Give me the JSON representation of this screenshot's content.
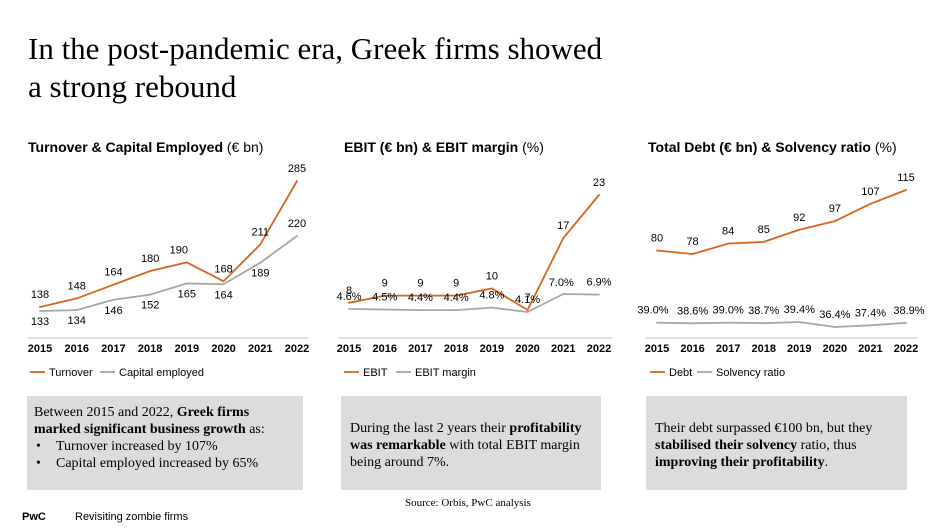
{
  "title_line1": "In the post-pandemic era, Greek firms showed",
  "title_line2": "a strong rebound",
  "colors": {
    "orange": "#D9641E",
    "grey": "#A6A6A6",
    "note_bg": "#DCDCDC"
  },
  "chart_data": [
    {
      "type": "line",
      "title_bold": "Turnover & Capital Employed",
      "title_unit": " (€ bn)",
      "x": [
        "2015",
        "2016",
        "2017",
        "2018",
        "2019",
        "2020",
        "2021",
        "2022"
      ],
      "series": [
        {
          "name": "Turnover",
          "color": "#D9641E",
          "values": [
            138,
            148,
            164,
            180,
            190,
            168,
            211,
            285
          ],
          "labels": [
            "138",
            "148",
            "164",
            "180",
            "190",
            "168",
            "211",
            "285"
          ]
        },
        {
          "name": "Capital employed",
          "color": "#A6A6A6",
          "values": [
            133,
            134,
            146,
            152,
            165,
            164,
            189,
            220
          ],
          "labels": [
            "133",
            "134",
            "146",
            "152",
            "165",
            "164",
            "189",
            "220"
          ]
        }
      ]
    },
    {
      "type": "line",
      "title_bold": "EBIT (€ bn) & EBIT margin",
      "title_unit": " (%)",
      "x": [
        "2015",
        "2016",
        "2017",
        "2018",
        "2019",
        "2020",
        "2021",
        "2022"
      ],
      "series": [
        {
          "name": "EBIT",
          "color": "#D9641E",
          "values": [
            8,
            9,
            9,
            9,
            10,
            7,
            17,
            23
          ],
          "labels": [
            "8",
            "9",
            "9",
            "9",
            "10",
            "7",
            "17",
            "23"
          ]
        },
        {
          "name": "EBIT margin",
          "color": "#A6A6A6",
          "values": [
            4.6,
            4.5,
            4.4,
            4.4,
            4.8,
            4.1,
            7.0,
            6.9
          ],
          "labels": [
            "4.6%",
            "4.5%",
            "4.4%",
            "4.4%",
            "4.8%",
            "4.1%",
            "7.0%",
            "6.9%"
          ]
        }
      ]
    },
    {
      "type": "line",
      "title_bold": "Total Debt (€ bn) & Solvency ratio",
      "title_unit": " (%)",
      "x": [
        "2015",
        "2016",
        "2017",
        "2018",
        "2019",
        "2020",
        "2021",
        "2022"
      ],
      "series": [
        {
          "name": "Debt",
          "color": "#D9641E",
          "values": [
            80,
            78,
            84,
            85,
            92,
            97,
            107,
            115
          ],
          "labels": [
            "80",
            "78",
            "84",
            "85",
            "92",
            "97",
            "107",
            "115"
          ]
        },
        {
          "name": "Solvency ratio",
          "color": "#A6A6A6",
          "values": [
            39.0,
            38.6,
            39.0,
            38.7,
            39.4,
            36.4,
            37.4,
            38.9
          ],
          "labels": [
            "39.0%",
            "38.6%",
            "39.0%",
            "38.7%",
            "39.4%",
            "36.4%",
            "37.4%",
            "38.9%"
          ]
        }
      ]
    }
  ],
  "notes": {
    "n1_a": "Between 2015 and 2022, ",
    "n1_b": "Greek firms marked significant business growth",
    "n1_c": " as:",
    "n1_bullet1": "Turnover increased by 107%",
    "n1_bullet2": "Capital employed increased by 65%",
    "n2_a": "During the last 2 years their ",
    "n2_b": "profitability was remarkable",
    "n2_c": " with total EBIT margin being around 7%.",
    "n3_a": "Their debt surpassed €100 bn, but they ",
    "n3_b": "stabilised their solvency",
    "n3_c": " ratio, thus ",
    "n3_d": "improving their profitability",
    "n3_e": "."
  },
  "source": "Source: Orbis, PwC analysis",
  "footer": {
    "brand": "PwC",
    "text": "Revisiting zombie firms"
  }
}
